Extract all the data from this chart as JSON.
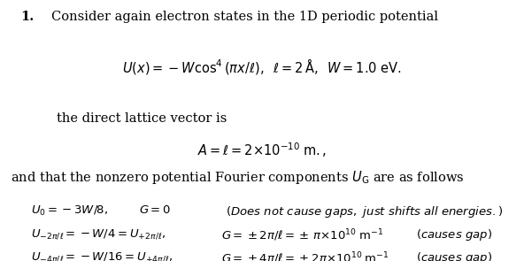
{
  "background_color": "#ffffff",
  "fig_width": 5.92,
  "fig_height": 2.95,
  "dpi": 100
}
